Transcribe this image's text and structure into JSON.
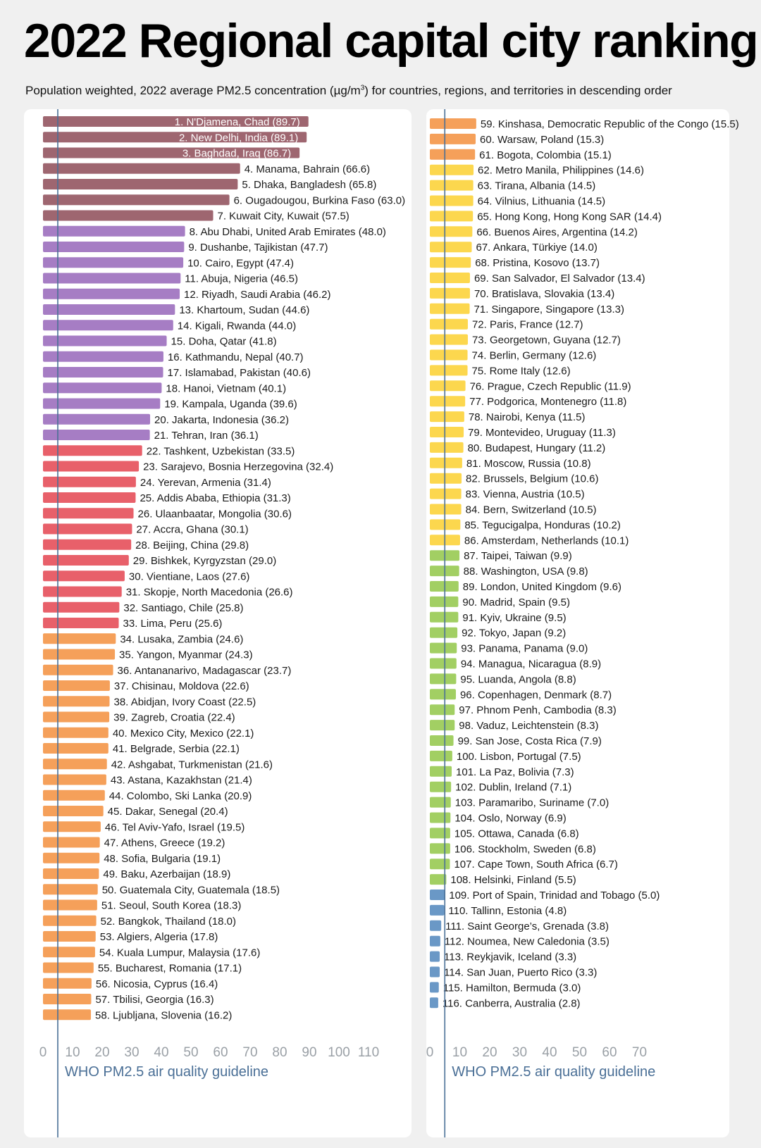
{
  "title": "2022 Regional capital city ranking",
  "subtitle": {
    "before": "Population weighted, 2022 average PM2.5 concentration (µg/m",
    "sup": "3",
    "after": ") for countries, regions, and territories in descending order"
  },
  "colors": {
    "severe": "#9e6670",
    "very_high": "#a67dc4",
    "high": "#e8606a",
    "elevated": "#f5a05a",
    "moderate": "#fcd74e",
    "low": "#a2cf63",
    "very_low": "#6a98c6",
    "guideline": "#4a6f96",
    "tick": "#9aa0a6"
  },
  "chart_data": [
    {
      "type": "bar",
      "orientation": "horizontal",
      "xlim": [
        0,
        110
      ],
      "xticks": [
        0,
        10,
        20,
        30,
        40,
        50,
        60,
        70,
        80,
        90,
        100,
        110
      ],
      "reference_line": {
        "value": 5,
        "label": "WHO PM2.5 air quality guideline"
      },
      "cities": [
        {
          "label": "1. N'Djamena, Chad (89.7)",
          "value": 89.7,
          "band": "severe"
        },
        {
          "label": "2. New Delhi, India (89.1)",
          "value": 89.1,
          "band": "severe"
        },
        {
          "label": "3. Baghdad, Iraq (86.7)",
          "value": 86.7,
          "band": "severe"
        },
        {
          "label": "4. Manama, Bahrain (66.6)",
          "value": 66.6,
          "band": "severe"
        },
        {
          "label": "5. Dhaka, Bangladesh (65.8)",
          "value": 65.8,
          "band": "severe"
        },
        {
          "label": "6. Ougadougou, Burkina Faso (63.0)",
          "value": 63.0,
          "band": "severe"
        },
        {
          "label": "7. Kuwait City, Kuwait (57.5)",
          "value": 57.5,
          "band": "severe"
        },
        {
          "label": "8. Abu Dhabi, United Arab Emirates (48.0)",
          "value": 48.0,
          "band": "very_high"
        },
        {
          "label": "9. Dushanbe, Tajikistan (47.7)",
          "value": 47.7,
          "band": "very_high"
        },
        {
          "label": "10. Cairo, Egypt (47.4)",
          "value": 47.4,
          "band": "very_high"
        },
        {
          "label": "11. Abuja, Nigeria (46.5)",
          "value": 46.5,
          "band": "very_high"
        },
        {
          "label": "12. Riyadh, Saudi Arabia (46.2)",
          "value": 46.2,
          "band": "very_high"
        },
        {
          "label": "13. Khartoum, Sudan (44.6)",
          "value": 44.6,
          "band": "very_high"
        },
        {
          "label": "14. Kigali, Rwanda (44.0)",
          "value": 44.0,
          "band": "very_high"
        },
        {
          "label": "15. Doha, Qatar (41.8)",
          "value": 41.8,
          "band": "very_high"
        },
        {
          "label": "16. Kathmandu, Nepal (40.7)",
          "value": 40.7,
          "band": "very_high"
        },
        {
          "label": "17. Islamabad, Pakistan (40.6)",
          "value": 40.6,
          "band": "very_high"
        },
        {
          "label": "18. Hanoi, Vietnam (40.1)",
          "value": 40.1,
          "band": "very_high"
        },
        {
          "label": "19. Kampala, Uganda (39.6)",
          "value": 39.6,
          "band": "very_high"
        },
        {
          "label": "20. Jakarta, Indonesia (36.2)",
          "value": 36.2,
          "band": "very_high"
        },
        {
          "label": "21. Tehran, Iran (36.1)",
          "value": 36.1,
          "band": "very_high"
        },
        {
          "label": "22. Tashkent, Uzbekistan (33.5)",
          "value": 33.5,
          "band": "high"
        },
        {
          "label": "23. Sarajevo, Bosnia Herzegovina (32.4)",
          "value": 32.4,
          "band": "high"
        },
        {
          "label": "24. Yerevan, Armenia (31.4)",
          "value": 31.4,
          "band": "high"
        },
        {
          "label": "25. Addis Ababa, Ethiopia (31.3)",
          "value": 31.3,
          "band": "high"
        },
        {
          "label": "26. Ulaanbaatar, Mongolia (30.6)",
          "value": 30.6,
          "band": "high"
        },
        {
          "label": "27. Accra, Ghana (30.1)",
          "value": 30.1,
          "band": "high"
        },
        {
          "label": "28. Beijing, China (29.8)",
          "value": 29.8,
          "band": "high"
        },
        {
          "label": "29. Bishkek, Kyrgyzstan (29.0)",
          "value": 29.0,
          "band": "high"
        },
        {
          "label": "30. Vientiane, Laos (27.6)",
          "value": 27.6,
          "band": "high"
        },
        {
          "label": "31. Skopje, North Macedonia (26.6)",
          "value": 26.6,
          "band": "high"
        },
        {
          "label": "32. Santiago, Chile (25.8)",
          "value": 25.8,
          "band": "high"
        },
        {
          "label": "33. Lima, Peru (25.6)",
          "value": 25.6,
          "band": "high"
        },
        {
          "label": "34. Lusaka, Zambia (24.6)",
          "value": 24.6,
          "band": "elevated"
        },
        {
          "label": "35. Yangon, Myanmar (24.3)",
          "value": 24.3,
          "band": "elevated"
        },
        {
          "label": "36. Antananarivo, Madagascar (23.7)",
          "value": 23.7,
          "band": "elevated"
        },
        {
          "label": "37. Chisinau, Moldova (22.6)",
          "value": 22.6,
          "band": "elevated"
        },
        {
          "label": "38. Abidjan, Ivory Coast (22.5)",
          "value": 22.5,
          "band": "elevated"
        },
        {
          "label": "39. Zagreb, Croatia (22.4)",
          "value": 22.4,
          "band": "elevated"
        },
        {
          "label": "40. Mexico City, Mexico (22.1)",
          "value": 22.1,
          "band": "elevated"
        },
        {
          "label": "41. Belgrade, Serbia (22.1)",
          "value": 22.1,
          "band": "elevated"
        },
        {
          "label": "42. Ashgabat, Turkmenistan (21.6)",
          "value": 21.6,
          "band": "elevated"
        },
        {
          "label": "43. Astana, Kazakhstan (21.4)",
          "value": 21.4,
          "band": "elevated"
        },
        {
          "label": "44. Colombo, Ski Lanka (20.9)",
          "value": 20.9,
          "band": "elevated"
        },
        {
          "label": "45. Dakar, Senegal (20.4)",
          "value": 20.4,
          "band": "elevated"
        },
        {
          "label": "46. Tel Aviv-Yafo, Israel (19.5)",
          "value": 19.5,
          "band": "elevated"
        },
        {
          "label": "47. Athens, Greece (19.2)",
          "value": 19.2,
          "band": "elevated"
        },
        {
          "label": "48. Sofia, Bulgaria (19.1)",
          "value": 19.1,
          "band": "elevated"
        },
        {
          "label": "49. Baku, Azerbaijan (18.9)",
          "value": 18.9,
          "band": "elevated"
        },
        {
          "label": "50. Guatemala City, Guatemala (18.5)",
          "value": 18.5,
          "band": "elevated"
        },
        {
          "label": "51. Seoul, South Korea (18.3)",
          "value": 18.3,
          "band": "elevated"
        },
        {
          "label": "52. Bangkok, Thailand (18.0)",
          "value": 18.0,
          "band": "elevated"
        },
        {
          "label": "53. Algiers, Algeria (17.8)",
          "value": 17.8,
          "band": "elevated"
        },
        {
          "label": "54. Kuala Lumpur, Malaysia (17.6)",
          "value": 17.6,
          "band": "elevated"
        },
        {
          "label": "55. Bucharest, Romania (17.1)",
          "value": 17.1,
          "band": "elevated"
        },
        {
          "label": "56. Nicosia, Cyprus (16.4)",
          "value": 16.4,
          "band": "elevated"
        },
        {
          "label": "57. Tbilisi, Georgia (16.3)",
          "value": 16.3,
          "band": "elevated"
        },
        {
          "label": "58. Ljubljana, Slovenia (16.2)",
          "value": 16.2,
          "band": "elevated"
        }
      ]
    },
    {
      "type": "bar",
      "orientation": "horizontal",
      "xlim": [
        0,
        70
      ],
      "xticks": [
        0,
        10,
        20,
        30,
        40,
        50,
        60,
        70
      ],
      "reference_line": {
        "value": 5,
        "label": "WHO PM2.5 air quality guideline"
      },
      "cities": [
        {
          "label": "59. Kinshasa, Democratic Republic of the Congo (15.5)",
          "value": 15.5,
          "band": "elevated"
        },
        {
          "label": "60. Warsaw, Poland (15.3)",
          "value": 15.3,
          "band": "elevated"
        },
        {
          "label": "61. Bogota, Colombia (15.1)",
          "value": 15.1,
          "band": "elevated"
        },
        {
          "label": "62. Metro Manila, Philippines (14.6)",
          "value": 14.6,
          "band": "moderate"
        },
        {
          "label": "63. Tirana, Albania (14.5)",
          "value": 14.5,
          "band": "moderate"
        },
        {
          "label": "64. Vilnius, Lithuania (14.5)",
          "value": 14.5,
          "band": "moderate"
        },
        {
          "label": "65. Hong Kong, Hong Kong SAR (14.4)",
          "value": 14.4,
          "band": "moderate"
        },
        {
          "label": "66. Buenos Aires, Argentina (14.2)",
          "value": 14.2,
          "band": "moderate"
        },
        {
          "label": "67. Ankara, Türkiye (14.0)",
          "value": 14.0,
          "band": "moderate"
        },
        {
          "label": "68. Pristina, Kosovo (13.7)",
          "value": 13.7,
          "band": "moderate"
        },
        {
          "label": "69. San Salvador, El Salvador (13.4)",
          "value": 13.4,
          "band": "moderate"
        },
        {
          "label": "70. Bratislava, Slovakia (13.4)",
          "value": 13.4,
          "band": "moderate"
        },
        {
          "label": "71. Singapore, Singapore (13.3)",
          "value": 13.3,
          "band": "moderate"
        },
        {
          "label": "72. Paris, France (12.7)",
          "value": 12.7,
          "band": "moderate"
        },
        {
          "label": "73. Georgetown, Guyana (12.7)",
          "value": 12.7,
          "band": "moderate"
        },
        {
          "label": "74. Berlin, Germany (12.6)",
          "value": 12.6,
          "band": "moderate"
        },
        {
          "label": "75. Rome Italy (12.6)",
          "value": 12.6,
          "band": "moderate"
        },
        {
          "label": "76. Prague, Czech Republic (11.9)",
          "value": 11.9,
          "band": "moderate"
        },
        {
          "label": "77. Podgorica, Montenegro (11.8)",
          "value": 11.8,
          "band": "moderate"
        },
        {
          "label": "78. Nairobi, Kenya (11.5)",
          "value": 11.5,
          "band": "moderate"
        },
        {
          "label": "79. Montevideo, Uruguay (11.3)",
          "value": 11.3,
          "band": "moderate"
        },
        {
          "label": "80. Budapest, Hungary (11.2)",
          "value": 11.2,
          "band": "moderate"
        },
        {
          "label": "81. Moscow, Russia (10.8)",
          "value": 10.8,
          "band": "moderate"
        },
        {
          "label": "82. Brussels, Belgium (10.6)",
          "value": 10.6,
          "band": "moderate"
        },
        {
          "label": "83. Vienna, Austria (10.5)",
          "value": 10.5,
          "band": "moderate"
        },
        {
          "label": "84. Bern, Switzerland (10.5)",
          "value": 10.5,
          "band": "moderate"
        },
        {
          "label": "85. Tegucigalpa, Honduras (10.2)",
          "value": 10.2,
          "band": "moderate"
        },
        {
          "label": "86. Amsterdam, Netherlands (10.1)",
          "value": 10.1,
          "band": "moderate"
        },
        {
          "label": "87. Taipei, Taiwan (9.9)",
          "value": 9.9,
          "band": "low"
        },
        {
          "label": "88. Washington, USA (9.8)",
          "value": 9.8,
          "band": "low"
        },
        {
          "label": "89. London, United Kingdom (9.6)",
          "value": 9.6,
          "band": "low"
        },
        {
          "label": "90. Madrid, Spain (9.5)",
          "value": 9.5,
          "band": "low"
        },
        {
          "label": "91. Kyiv, Ukraine (9.5)",
          "value": 9.5,
          "band": "low"
        },
        {
          "label": "92. Tokyo, Japan (9.2)",
          "value": 9.2,
          "band": "low"
        },
        {
          "label": "93. Panama, Panama (9.0)",
          "value": 9.0,
          "band": "low"
        },
        {
          "label": "94. Managua, Nicaragua (8.9)",
          "value": 8.9,
          "band": "low"
        },
        {
          "label": "95. Luanda, Angola (8.8)",
          "value": 8.8,
          "band": "low"
        },
        {
          "label": "96. Copenhagen, Denmark (8.7)",
          "value": 8.7,
          "band": "low"
        },
        {
          "label": "97. Phnom Penh, Cambodia (8.3)",
          "value": 8.3,
          "band": "low"
        },
        {
          "label": "98. Vaduz, Leichtenstein (8.3)",
          "value": 8.3,
          "band": "low"
        },
        {
          "label": "99. San Jose, Costa Rica (7.9)",
          "value": 7.9,
          "band": "low"
        },
        {
          "label": "100. Lisbon, Portugal (7.5)",
          "value": 7.5,
          "band": "low"
        },
        {
          "label": "101. La Paz, Bolivia (7.3)",
          "value": 7.3,
          "band": "low"
        },
        {
          "label": "102. Dublin, Ireland (7.1)",
          "value": 7.1,
          "band": "low"
        },
        {
          "label": "103. Paramaribo, Suriname (7.0)",
          "value": 7.0,
          "band": "low"
        },
        {
          "label": "104. Oslo, Norway (6.9)",
          "value": 6.9,
          "band": "low"
        },
        {
          "label": "105. Ottawa, Canada (6.8)",
          "value": 6.8,
          "band": "low"
        },
        {
          "label": "106. Stockholm, Sweden (6.8)",
          "value": 6.8,
          "band": "low"
        },
        {
          "label": "107. Cape Town, South Africa (6.7)",
          "value": 6.7,
          "band": "low"
        },
        {
          "label": "108. Helsinki, Finland (5.5)",
          "value": 5.5,
          "band": "low"
        },
        {
          "label": "109. Port of Spain, Trinidad and Tobago (5.0)",
          "value": 5.0,
          "band": "very_low"
        },
        {
          "label": "110. Tallinn, Estonia (4.8)",
          "value": 4.8,
          "band": "very_low"
        },
        {
          "label": "111. Saint George’s, Grenada (3.8)",
          "value": 3.8,
          "band": "very_low"
        },
        {
          "label": "112. Noumea, New Caledonia (3.5)",
          "value": 3.5,
          "band": "very_low"
        },
        {
          "label": "113. Reykjavik, Iceland (3.3)",
          "value": 3.3,
          "band": "very_low"
        },
        {
          "label": "114. San Juan, Puerto Rico (3.3)",
          "value": 3.3,
          "band": "very_low"
        },
        {
          "label": "115. Hamilton, Bermuda (3.0)",
          "value": 3.0,
          "band": "very_low"
        },
        {
          "label": "116. Canberra, Australia (2.8)",
          "value": 2.8,
          "band": "very_low"
        }
      ]
    }
  ]
}
